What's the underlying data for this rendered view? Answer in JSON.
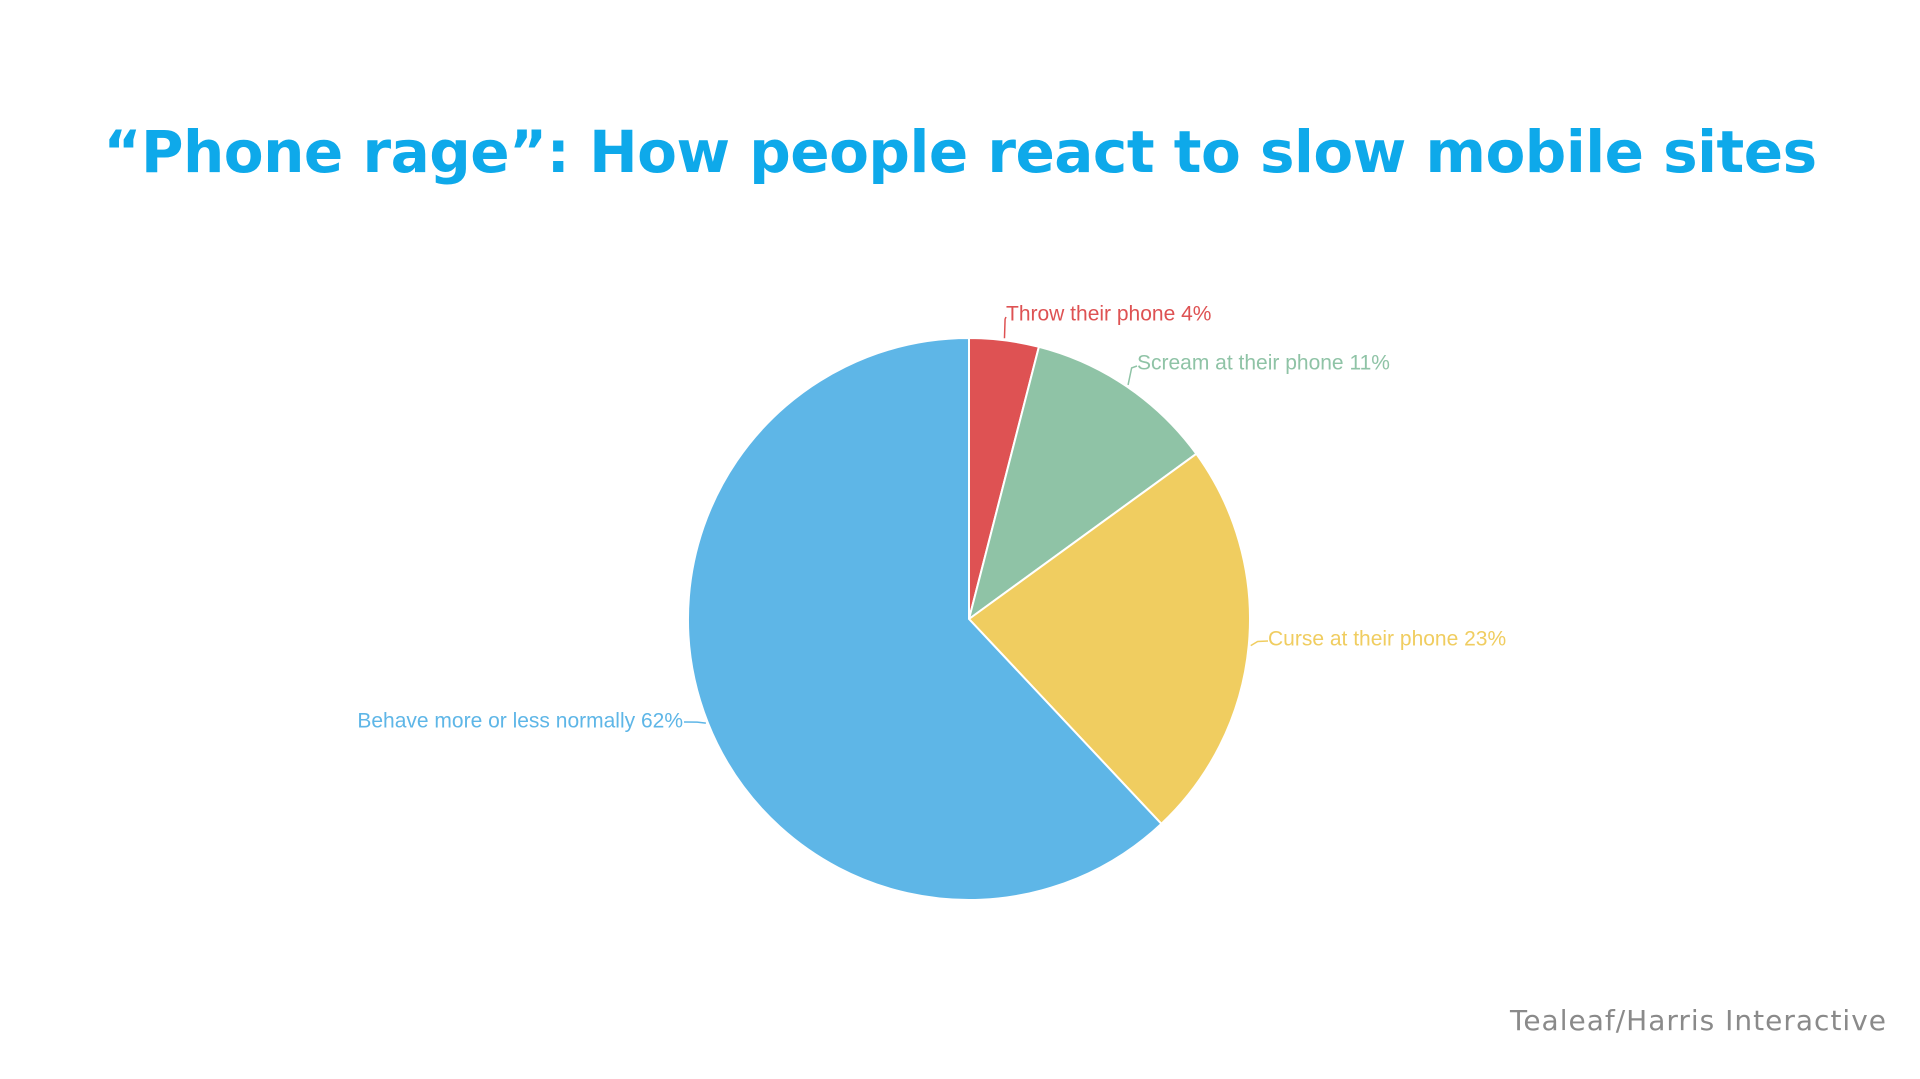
{
  "title": "“Phone rage”: How people react to slow mobile sites",
  "source": "Tealeaf/Harris Interactive",
  "chart_data": {
    "type": "pie",
    "title": "“Phone rage”: How people react to slow mobile sites",
    "unit": "%",
    "slices": [
      {
        "label": "Throw their phone 4%",
        "category": "Throw their phone",
        "value": 4,
        "color": "#de5253"
      },
      {
        "label": "Scream at their phone 11%",
        "category": "Scream at their phone",
        "value": 11,
        "color": "#8fc3a6"
      },
      {
        "label": "Curse at their phone 23%",
        "category": "Curse at their phone",
        "value": 23,
        "color": "#f0cd60"
      },
      {
        "label": "Behave more or less normally 62%",
        "category": "Behave more or less normally",
        "value": 62,
        "color": "#5eb6e7"
      }
    ],
    "start_angle": "12 o'clock",
    "direction": "clockwise",
    "legend": "none",
    "labels": "outside-with-leader-lines"
  }
}
